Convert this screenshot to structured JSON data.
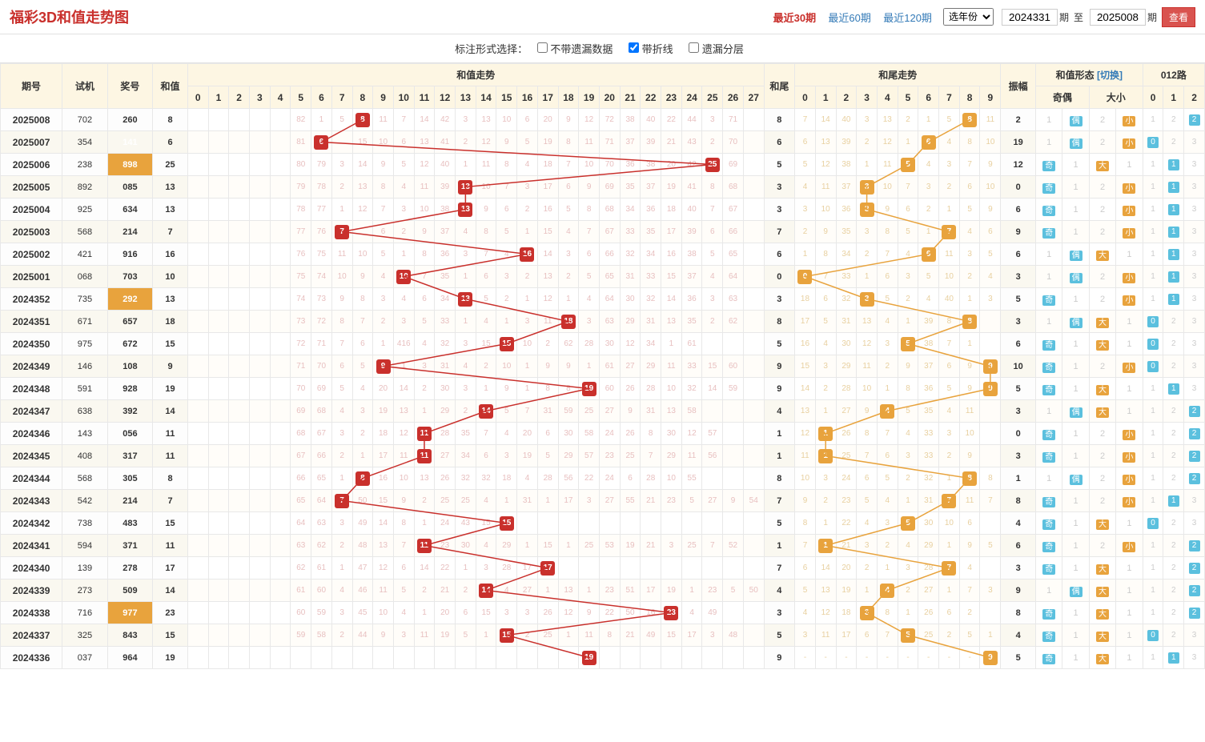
{
  "title": "福彩3D和值走势图",
  "periodLinks": {
    "p30": "最近30期",
    "p60": "最近60期",
    "p120": "最近120期"
  },
  "yearSelect": "选年份",
  "fromPeriod": "2024331",
  "toPeriod": "2025008",
  "periodSuffix": "期",
  "toLabel": "至",
  "viewBtn": "查看",
  "options": {
    "label": "标注形式选择：",
    "opt1": "不带遗漏数据",
    "opt2": "带折线",
    "opt3": "遗漏分层",
    "checked": 1
  },
  "headers": {
    "period": "期号",
    "shiji": "试机",
    "jiang": "奖号",
    "sum": "和值",
    "sumTrend": "和值走势",
    "tail": "和尾",
    "tailTrend": "和尾走势",
    "amp": "振幅",
    "shape": "和值形态",
    "switch": "[切换]",
    "oddEven": "奇偶",
    "bigSmall": "大小",
    "route": "012路"
  },
  "sumCols": 28,
  "tailCols": 10,
  "colors": {
    "hit1": "#c9302c",
    "hit2": "#e8a33d",
    "line1": "#c9302c",
    "line2": "#e8a33d",
    "miss1": "#e8c0c0",
    "miss2": "#e8d0a0",
    "headerBg": "#fdf6e3",
    "oddBadge": "#5bc0de",
    "sizeBadge": "#e8a33d",
    "routeBadge": "#5bc0de"
  },
  "shapeLabels": {
    "odd": "奇",
    "even": "偶",
    "big": "大",
    "small": "小"
  },
  "rows": [
    {
      "p": "2025008",
      "sj": "702",
      "jh": "260",
      "jhl": 0,
      "sum": 8,
      "t": 8,
      "amp": 2,
      "odd": 0,
      "big": 0,
      "r": 2,
      "m1": [
        "-",
        "-",
        "-",
        "-",
        "-",
        "82",
        "1",
        "5",
        "8",
        "11",
        "7",
        "14",
        "42",
        "3",
        "13",
        "10",
        "6",
        "20",
        "9",
        "12",
        "72",
        "38",
        "40",
        "22",
        "44",
        "3",
        "71",
        "-"
      ],
      "m2": [
        "7",
        "14",
        "40",
        "3",
        "13",
        "2",
        "1",
        "5",
        "8",
        "11"
      ]
    },
    {
      "p": "2025007",
      "sj": "354",
      "jh": "141",
      "jhl": 1,
      "sum": 6,
      "t": 6,
      "amp": 19,
      "odd": 0,
      "big": 0,
      "r": 0,
      "m1": [
        "-",
        "-",
        "-",
        "-",
        "-",
        "81",
        "6",
        "-",
        "15",
        "10",
        "6",
        "13",
        "41",
        "2",
        "12",
        "9",
        "5",
        "19",
        "8",
        "11",
        "71",
        "37",
        "39",
        "21",
        "43",
        "2",
        "70",
        "-"
      ],
      "m2": [
        "6",
        "13",
        "39",
        "2",
        "12",
        "1",
        "6",
        "4",
        "8",
        "10"
      ]
    },
    {
      "p": "2025006",
      "sj": "238",
      "jh": "898",
      "jhl": 1,
      "sum": 25,
      "t": 5,
      "amp": 12,
      "odd": 1,
      "big": 1,
      "r": 1,
      "m1": [
        "-",
        "-",
        "-",
        "-",
        "-",
        "80",
        "79",
        "3",
        "14",
        "9",
        "5",
        "12",
        "40",
        "1",
        "11",
        "8",
        "4",
        "18",
        "7",
        "10",
        "70",
        "36",
        "38",
        "20",
        "42",
        "25",
        "69",
        "-"
      ],
      "m2": [
        "5",
        "12",
        "38",
        "1",
        "11",
        "5",
        "4",
        "3",
        "7",
        "9"
      ]
    },
    {
      "p": "2025005",
      "sj": "892",
      "jh": "085",
      "jhl": 0,
      "sum": 13,
      "t": 3,
      "amp": 0,
      "odd": 1,
      "big": 0,
      "r": 1,
      "m1": [
        "-",
        "-",
        "-",
        "-",
        "-",
        "79",
        "78",
        "2",
        "13",
        "8",
        "4",
        "11",
        "39",
        "13",
        "10",
        "7",
        "3",
        "17",
        "6",
        "9",
        "69",
        "35",
        "37",
        "19",
        "41",
        "8",
        "68",
        "-"
      ],
      "m2": [
        "4",
        "11",
        "37",
        "3",
        "10",
        "7",
        "3",
        "2",
        "6",
        "10"
      ]
    },
    {
      "p": "2025004",
      "sj": "925",
      "jh": "634",
      "jhl": 0,
      "sum": 13,
      "t": 3,
      "amp": 6,
      "odd": 1,
      "big": 0,
      "r": 1,
      "m1": [
        "-",
        "-",
        "-",
        "-",
        "-",
        "78",
        "77",
        "1",
        "12",
        "7",
        "3",
        "10",
        "38",
        "13",
        "9",
        "6",
        "2",
        "16",
        "5",
        "8",
        "68",
        "34",
        "36",
        "18",
        "40",
        "7",
        "67",
        "-"
      ],
      "m2": [
        "3",
        "10",
        "36",
        "3",
        "9",
        "6",
        "2",
        "1",
        "5",
        "9"
      ]
    },
    {
      "p": "2025003",
      "sj": "568",
      "jh": "214",
      "jhl": 0,
      "sum": 7,
      "t": 7,
      "amp": 9,
      "odd": 1,
      "big": 0,
      "r": 1,
      "m1": [
        "-",
        "-",
        "-",
        "-",
        "-",
        "77",
        "76",
        "7",
        "-",
        "6",
        "2",
        "9",
        "37",
        "4",
        "8",
        "5",
        "1",
        "15",
        "4",
        "7",
        "67",
        "33",
        "35",
        "17",
        "39",
        "6",
        "66",
        "-"
      ],
      "m2": [
        "2",
        "9",
        "35",
        "3",
        "8",
        "5",
        "1",
        "7",
        "4",
        "6"
      ]
    },
    {
      "p": "2025002",
      "sj": "421",
      "jh": "916",
      "jhl": 0,
      "sum": 16,
      "t": 6,
      "amp": 6,
      "odd": 0,
      "big": 1,
      "r": 1,
      "m1": [
        "-",
        "-",
        "-",
        "-",
        "-",
        "76",
        "75",
        "11",
        "10",
        "5",
        "1",
        "8",
        "36",
        "3",
        "7",
        "4",
        "16",
        "14",
        "3",
        "6",
        "66",
        "32",
        "34",
        "16",
        "38",
        "5",
        "65",
        "-"
      ],
      "m2": [
        "1",
        "8",
        "34",
        "2",
        "7",
        "4",
        "6",
        "11",
        "3",
        "5"
      ]
    },
    {
      "p": "2025001",
      "sj": "068",
      "jh": "703",
      "jhl": 0,
      "sum": 10,
      "t": 0,
      "amp": 3,
      "odd": 0,
      "big": 0,
      "r": 1,
      "m1": [
        "-",
        "-",
        "-",
        "-",
        "-",
        "75",
        "74",
        "10",
        "9",
        "4",
        "10",
        "7",
        "35",
        "1",
        "6",
        "3",
        "2",
        "13",
        "2",
        "5",
        "65",
        "31",
        "33",
        "15",
        "37",
        "4",
        "64",
        "-"
      ],
      "m2": [
        "0",
        "7",
        "33",
        "1",
        "6",
        "3",
        "5",
        "10",
        "2",
        "4"
      ]
    },
    {
      "p": "2024352",
      "sj": "735",
      "jh": "292",
      "jhl": 1,
      "sum": 13,
      "t": 3,
      "amp": 5,
      "odd": 1,
      "big": 0,
      "r": 1,
      "m1": [
        "-",
        "-",
        "-",
        "-",
        "-",
        "74",
        "73",
        "9",
        "8",
        "3",
        "4",
        "6",
        "34",
        "13",
        "5",
        "2",
        "1",
        "12",
        "1",
        "4",
        "64",
        "30",
        "32",
        "14",
        "36",
        "3",
        "63",
        "-"
      ],
      "m2": [
        "18",
        "6",
        "32",
        "3",
        "5",
        "2",
        "4",
        "40",
        "1",
        "3"
      ]
    },
    {
      "p": "2024351",
      "sj": "671",
      "jh": "657",
      "jhl": 0,
      "sum": 18,
      "t": 8,
      "amp": 3,
      "odd": 0,
      "big": 1,
      "r": 0,
      "m1": [
        "-",
        "-",
        "-",
        "-",
        "-",
        "73",
        "72",
        "8",
        "7",
        "2",
        "3",
        "5",
        "33",
        "1",
        "4",
        "1",
        "3",
        "11",
        "18",
        "3",
        "63",
        "29",
        "31",
        "13",
        "35",
        "2",
        "62",
        "-"
      ],
      "m2": [
        "17",
        "5",
        "31",
        "13",
        "4",
        "1",
        "39",
        "8",
        "2"
      ]
    },
    {
      "p": "2024350",
      "sj": "975",
      "jh": "672",
      "jhl": 0,
      "sum": 15,
      "t": 5,
      "amp": 6,
      "odd": 1,
      "big": 1,
      "r": 0,
      "m1": [
        "-",
        "-",
        "-",
        "-",
        "-",
        "72",
        "71",
        "7",
        "6",
        "1",
        "416",
        "4",
        "32",
        "3",
        "15",
        "38",
        "10",
        "2",
        "62",
        "28",
        "30",
        "12",
        "34",
        "1",
        "61",
        "-",
        "-",
        "-"
      ],
      "m2": [
        "16",
        "4",
        "30",
        "12",
        "3",
        "5",
        "38",
        "7",
        "1"
      ]
    },
    {
      "p": "2024349",
      "sj": "146",
      "jh": "108",
      "jhl": 0,
      "sum": 9,
      "t": 9,
      "amp": 10,
      "odd": 1,
      "big": 0,
      "r": 0,
      "m1": [
        "-",
        "-",
        "-",
        "-",
        "-",
        "71",
        "70",
        "6",
        "5",
        "9",
        "1",
        "3",
        "31",
        "4",
        "2",
        "10",
        "1",
        "9",
        "9",
        "1",
        "61",
        "27",
        "29",
        "11",
        "33",
        "15",
        "60",
        "-"
      ],
      "m2": [
        "15",
        "3",
        "29",
        "11",
        "2",
        "9",
        "37",
        "6",
        "9"
      ]
    },
    {
      "p": "2024348",
      "sj": "591",
      "jh": "928",
      "jhl": 0,
      "sum": 19,
      "t": 9,
      "amp": 5,
      "odd": 1,
      "big": 1,
      "r": 1,
      "m1": [
        "-",
        "-",
        "-",
        "-",
        "-",
        "70",
        "69",
        "5",
        "4",
        "20",
        "14",
        "2",
        "30",
        "3",
        "1",
        "9",
        "1",
        "8",
        "8",
        "19",
        "60",
        "26",
        "28",
        "10",
        "32",
        "14",
        "59",
        "-"
      ],
      "m2": [
        "14",
        "2",
        "28",
        "10",
        "1",
        "8",
        "36",
        "5",
        "9"
      ]
    },
    {
      "p": "2024347",
      "sj": "638",
      "jh": "392",
      "jhl": 0,
      "sum": 14,
      "t": 4,
      "amp": 3,
      "odd": 0,
      "big": 1,
      "r": 2,
      "m1": [
        "-",
        "-",
        "-",
        "-",
        "-",
        "69",
        "68",
        "4",
        "3",
        "19",
        "13",
        "1",
        "29",
        "2",
        "14",
        "5",
        "7",
        "31",
        "59",
        "25",
        "27",
        "9",
        "31",
        "13",
        "58",
        "-",
        "-",
        "-"
      ],
      "m2": [
        "13",
        "1",
        "27",
        "9",
        "4",
        "5",
        "35",
        "4",
        "11"
      ]
    },
    {
      "p": "2024346",
      "sj": "143",
      "jh": "056",
      "jhl": 0,
      "sum": 11,
      "t": 1,
      "amp": 0,
      "odd": 1,
      "big": 0,
      "r": 2,
      "m1": [
        "-",
        "-",
        "-",
        "-",
        "-",
        "68",
        "67",
        "3",
        "2",
        "18",
        "12",
        "11",
        "28",
        "35",
        "7",
        "4",
        "20",
        "6",
        "30",
        "58",
        "24",
        "26",
        "8",
        "30",
        "12",
        "57",
        "-",
        "-"
      ],
      "m2": [
        "12",
        "1",
        "26",
        "8",
        "7",
        "4",
        "33",
        "3",
        "10"
      ]
    },
    {
      "p": "2024345",
      "sj": "408",
      "jh": "317",
      "jhl": 0,
      "sum": 11,
      "t": 1,
      "amp": 3,
      "odd": 1,
      "big": 0,
      "r": 2,
      "m1": [
        "-",
        "-",
        "-",
        "-",
        "-",
        "67",
        "66",
        "2",
        "1",
        "17",
        "11",
        "11",
        "27",
        "34",
        "6",
        "3",
        "19",
        "5",
        "29",
        "57",
        "23",
        "25",
        "7",
        "29",
        "11",
        "56",
        "-",
        "-"
      ],
      "m2": [
        "11",
        "1",
        "25",
        "7",
        "6",
        "3",
        "33",
        "2",
        "9"
      ]
    },
    {
      "p": "2024344",
      "sj": "568",
      "jh": "305",
      "jhl": 0,
      "sum": 8,
      "t": 8,
      "amp": 1,
      "odd": 0,
      "big": 0,
      "r": 2,
      "m1": [
        "-",
        "-",
        "-",
        "-",
        "-",
        "66",
        "65",
        "1",
        "8",
        "16",
        "10",
        "13",
        "26",
        "32",
        "32",
        "18",
        "4",
        "28",
        "56",
        "22",
        "24",
        "6",
        "28",
        "10",
        "55",
        "-",
        "-",
        "-"
      ],
      "m2": [
        "10",
        "3",
        "24",
        "6",
        "5",
        "2",
        "32",
        "1",
        "8",
        "8"
      ]
    },
    {
      "p": "2024343",
      "sj": "542",
      "jh": "214",
      "jhl": 0,
      "sum": 7,
      "t": 7,
      "amp": 8,
      "odd": 1,
      "big": 0,
      "r": 1,
      "m1": [
        "-",
        "-",
        "-",
        "-",
        "-",
        "65",
        "64",
        "7",
        "50",
        "15",
        "9",
        "2",
        "25",
        "25",
        "4",
        "1",
        "31",
        "1",
        "17",
        "3",
        "27",
        "55",
        "21",
        "23",
        "5",
        "27",
        "9",
        "54"
      ],
      "m2": [
        "9",
        "2",
        "23",
        "5",
        "4",
        "1",
        "31",
        "7",
        "11",
        "7"
      ]
    },
    {
      "p": "2024342",
      "sj": "738",
      "jh": "483",
      "jhl": 0,
      "sum": 15,
      "t": 5,
      "amp": 4,
      "odd": 1,
      "big": 1,
      "r": 0,
      "m1": [
        "-",
        "-",
        "-",
        "-",
        "-",
        "64",
        "63",
        "3",
        "49",
        "14",
        "8",
        "1",
        "24",
        "43",
        "15",
        "-",
        "-",
        "-",
        "-",
        "-",
        "-",
        "-",
        "-",
        "-",
        "-",
        "-",
        "-",
        "-"
      ],
      "m2": [
        "8",
        "1",
        "22",
        "4",
        "3",
        "5",
        "30",
        "10",
        "6"
      ]
    },
    {
      "p": "2024341",
      "sj": "594",
      "jh": "371",
      "jhl": 0,
      "sum": 11,
      "t": 1,
      "amp": 6,
      "odd": 1,
      "big": 0,
      "r": 2,
      "m1": [
        "-",
        "-",
        "-",
        "-",
        "-",
        "63",
        "62",
        "2",
        "48",
        "13",
        "7",
        "11",
        "23",
        "30",
        "4",
        "29",
        "1",
        "15",
        "1",
        "25",
        "53",
        "19",
        "21",
        "3",
        "25",
        "7",
        "52",
        "-"
      ],
      "m2": [
        "7",
        "1",
        "21",
        "3",
        "2",
        "4",
        "29",
        "1",
        "9",
        "5"
      ]
    },
    {
      "p": "2024340",
      "sj": "139",
      "jh": "278",
      "jhl": 0,
      "sum": 17,
      "t": 7,
      "amp": 3,
      "odd": 1,
      "big": 1,
      "r": 2,
      "m1": [
        "-",
        "-",
        "-",
        "-",
        "-",
        "62",
        "61",
        "1",
        "47",
        "12",
        "6",
        "14",
        "22",
        "1",
        "3",
        "28",
        "17",
        "-",
        "-",
        "-",
        "-",
        "-",
        "-",
        "-",
        "-",
        "-",
        "-",
        "-"
      ],
      "m2": [
        "6",
        "14",
        "20",
        "2",
        "1",
        "3",
        "28",
        "7",
        "4"
      ]
    },
    {
      "p": "2024339",
      "sj": "273",
      "jh": "509",
      "jhl": 0,
      "sum": 14,
      "t": 4,
      "amp": 9,
      "odd": 0,
      "big": 1,
      "r": 2,
      "m1": [
        "-",
        "-",
        "-",
        "-",
        "-",
        "61",
        "60",
        "4",
        "46",
        "11",
        "5",
        "2",
        "21",
        "2",
        "14",
        "4",
        "27",
        "1",
        "13",
        "1",
        "23",
        "51",
        "17",
        "19",
        "1",
        "23",
        "5",
        "50"
      ],
      "m2": [
        "5",
        "13",
        "19",
        "1",
        "4",
        "2",
        "27",
        "1",
        "7",
        "3"
      ]
    },
    {
      "p": "2024338",
      "sj": "716",
      "jh": "977",
      "jhl": 1,
      "sum": 23,
      "t": 3,
      "amp": 8,
      "odd": 1,
      "big": 1,
      "r": 2,
      "m1": [
        "-",
        "-",
        "-",
        "-",
        "-",
        "60",
        "59",
        "3",
        "45",
        "10",
        "4",
        "1",
        "20",
        "6",
        "15",
        "3",
        "3",
        "26",
        "12",
        "9",
        "22",
        "50",
        "16",
        "23",
        "4",
        "49",
        "-",
        "-"
      ],
      "m2": [
        "4",
        "12",
        "18",
        "3",
        "8",
        "1",
        "26",
        "6",
        "2"
      ]
    },
    {
      "p": "2024337",
      "sj": "325",
      "jh": "843",
      "jhl": 0,
      "sum": 15,
      "t": 5,
      "amp": 4,
      "odd": 1,
      "big": 1,
      "r": 0,
      "m1": [
        "-",
        "-",
        "-",
        "-",
        "-",
        "59",
        "58",
        "2",
        "44",
        "9",
        "3",
        "11",
        "19",
        "5",
        "1",
        "15",
        "2",
        "25",
        "1",
        "11",
        "8",
        "21",
        "49",
        "15",
        "17",
        "3",
        "48",
        "-"
      ],
      "m2": [
        "3",
        "11",
        "17",
        "6",
        "7",
        "5",
        "25",
        "2",
        "5",
        "1"
      ]
    },
    {
      "p": "2024336",
      "sj": "037",
      "jh": "964",
      "jhl": 0,
      "sum": 19,
      "t": 9,
      "amp": 5,
      "odd": 1,
      "big": 1,
      "r": 1,
      "m1": [
        "-",
        "-",
        "-",
        "-",
        "-",
        "-",
        "-",
        "-",
        "-",
        "-",
        "-",
        "-",
        "-",
        "-",
        "-",
        "-",
        "-",
        "-",
        "-",
        "19",
        "-",
        "-",
        "-",
        "-",
        "-",
        "-",
        "-",
        "-"
      ],
      "m2": [
        "-",
        "-",
        "-",
        "-",
        "-",
        "-",
        "-",
        "-",
        "-",
        "9"
      ]
    }
  ]
}
